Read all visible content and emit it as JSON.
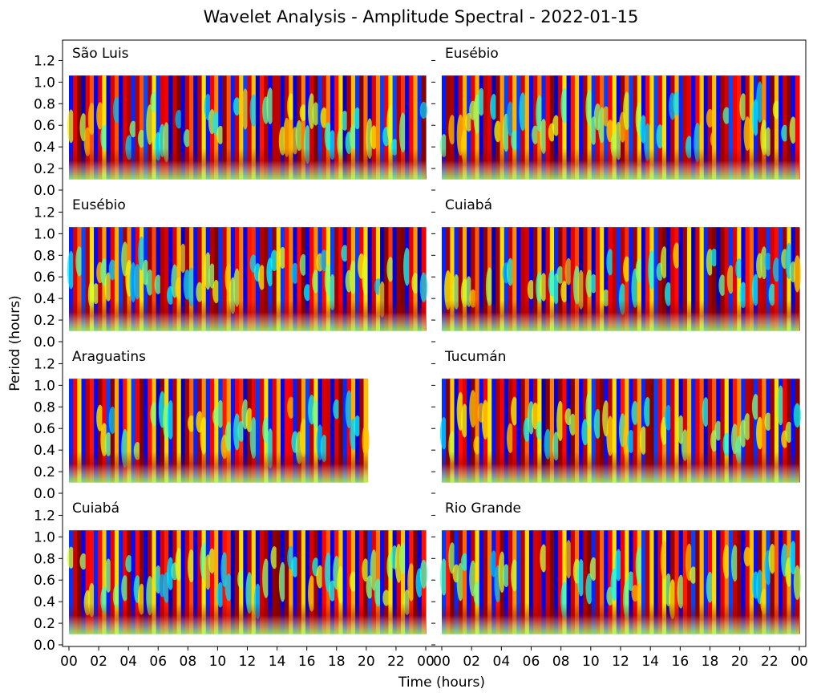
{
  "chart_data": {
    "type": "heatmap",
    "title": "Wavelet Analysis - Amplitude Spectral - 2022-01-15",
    "xlabel": "Time (hours)",
    "ylabel": "Period (hours)",
    "xlim": [
      0,
      24
    ],
    "ylim": [
      0,
      1.3
    ],
    "period_range": [
      0.1,
      1.06
    ],
    "colormap": "jet",
    "x_tick_labels": [
      "00",
      "02",
      "04",
      "06",
      "08",
      "10",
      "12",
      "14",
      "16",
      "18",
      "20",
      "22",
      "00"
    ],
    "y_tick_labels": [
      "0.0",
      "0.2",
      "0.4",
      "0.6",
      "0.8",
      "1.0",
      "1.2"
    ],
    "layout": "4 rows x 2 columns",
    "panels": [
      {
        "station": "São Luis",
        "data_start_hour": 0,
        "data_end_hour": 24
      },
      {
        "station": "Eusébio",
        "data_start_hour": 0,
        "data_end_hour": 24
      },
      {
        "station": "Eusébio",
        "data_start_hour": 0,
        "data_end_hour": 24
      },
      {
        "station": "Cuiabá",
        "data_start_hour": 0,
        "data_end_hour": 24
      },
      {
        "station": "Araguatins",
        "data_start_hour": 0,
        "data_end_hour": 20.1
      },
      {
        "station": "Tucumán",
        "data_start_hour": 0,
        "data_end_hour": 24
      },
      {
        "station": "Cuiabá",
        "data_start_hour": 0,
        "data_end_hour": 24
      },
      {
        "station": "Rio Grande",
        "data_start_hour": 0,
        "data_end_hour": 24
      }
    ]
  }
}
